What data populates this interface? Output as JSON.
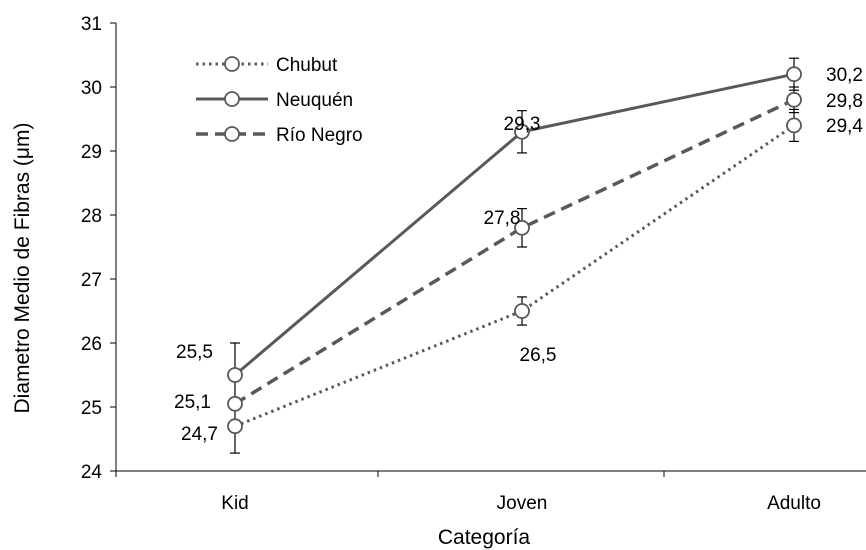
{
  "chart_data": {
    "type": "line",
    "categories": [
      "Kid",
      "Joven",
      "Adulto"
    ],
    "xlabel": "Categoría",
    "ylabel": "Diametro Medio de Fibras (μm)",
    "ylim": [
      24,
      31
    ],
    "yticks": [
      24,
      25,
      26,
      27,
      28,
      29,
      30,
      31
    ],
    "grid": false,
    "legend_position": "top-left",
    "series": [
      {
        "name": "Chubut",
        "dash": "dotted",
        "values": [
          24.7,
          26.5,
          29.4
        ],
        "error": [
          0.42,
          0.22,
          0.25
        ],
        "labels": [
          "24,7",
          "26,5",
          "29,4"
        ]
      },
      {
        "name": "Neuquén",
        "dash": "solid",
        "values": [
          25.5,
          29.3,
          30.2
        ],
        "error": [
          0.5,
          0.33,
          0.25
        ],
        "labels": [
          "25,5",
          "29,3",
          "30,2"
        ]
      },
      {
        "name": "Río Negro",
        "dash": "dashed",
        "values": [
          25.05,
          27.8,
          29.8
        ],
        "error": [
          0.0,
          0.3,
          0.2
        ],
        "labels": [
          "25,1",
          "27,8",
          "29,8"
        ]
      }
    ],
    "line_color": "#595959"
  }
}
